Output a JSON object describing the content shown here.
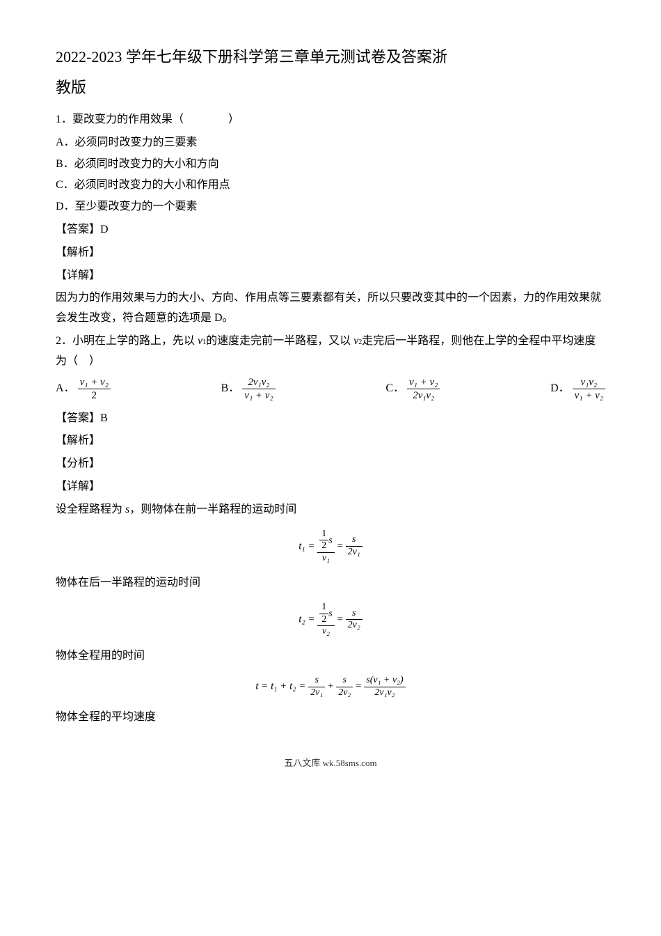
{
  "title_line1": "2022-2023 学年七年级下册科学第三章单元测试卷及答案浙",
  "title_line2": "教版",
  "q1": {
    "stem": "1．要改变力的作用效果（　　　　）",
    "optA": "A．必须同时改变力的三要素",
    "optB": "B．必须同时改变力的大小和方向",
    "optC": "C．必须同时改变力的大小和作用点",
    "optD": "D．至少要改变力的一个要素",
    "answer_label": "【答案】D",
    "analysis_label": "【解析】",
    "detail_label": "【详解】",
    "explanation": "因为力的作用效果与力的大小、方向、作用点等三要素都有关，所以只要改变其中的一个因素，力的作用效果就会发生改变，符合题意的选项是 D。"
  },
  "q2": {
    "stem_prefix": "2．小明在上学的路上，先以 ",
    "stem_v1": "v",
    "stem_v1_sub": "1",
    "stem_mid1": "的速度走完前一半路程，又以 ",
    "stem_v2": "v",
    "stem_v2_sub": "2",
    "stem_suffix": "走完后一半路程，则他在上学的全程中平均速度为（　）",
    "optA_label": "A．",
    "optA_num": "v₁ + v₂",
    "optA_den": "2",
    "optB_label": "B．",
    "optB_num": "2v₁v₂",
    "optB_den": "v₁ + v₂",
    "optC_label": "C．",
    "optC_num": "v₁ + v₂",
    "optC_den": "2v₁v₂",
    "optD_label": "D．",
    "optD_num": "v₁v₂",
    "optD_den": "v₁ + v₂",
    "answer_label": "【答案】B",
    "analysis_label": "【解析】",
    "fenxi_label": "【分析】",
    "detail_label": "【详解】",
    "exp1_prefix": "设全程路程为 ",
    "exp1_var": "s",
    "exp1_suffix": "，则物体在前一半路程的运动时间",
    "formula1_lhs": "t₁ =",
    "formula1_top_num": "½s",
    "formula1_top_den": "v₁",
    "formula1_eq": "=",
    "formula1_rhs_num": "s",
    "formula1_rhs_den": "2v₁",
    "exp2": "物体在后一半路程的运动时间",
    "formula2_lhs": "t₂ =",
    "formula2_top_num": "½s",
    "formula2_top_den": "v₂",
    "formula2_eq": "=",
    "formula2_rhs_num": "s",
    "formula2_rhs_den": "2v₂",
    "exp3": "物体全程用的时间",
    "formula3_lhs": "t = t₁ + t₂ =",
    "formula3_f1_num": "s",
    "formula3_f1_den": "2v₁",
    "formula3_plus": "+",
    "formula3_f2_num": "s",
    "formula3_f2_den": "2v₂",
    "formula3_eq": "=",
    "formula3_f3_num": "s(v₁ + v₂)",
    "formula3_f3_den": "2v₁v₂",
    "exp4": "物体全程的平均速度"
  },
  "footer": "五八文库 wk.58sms.com"
}
